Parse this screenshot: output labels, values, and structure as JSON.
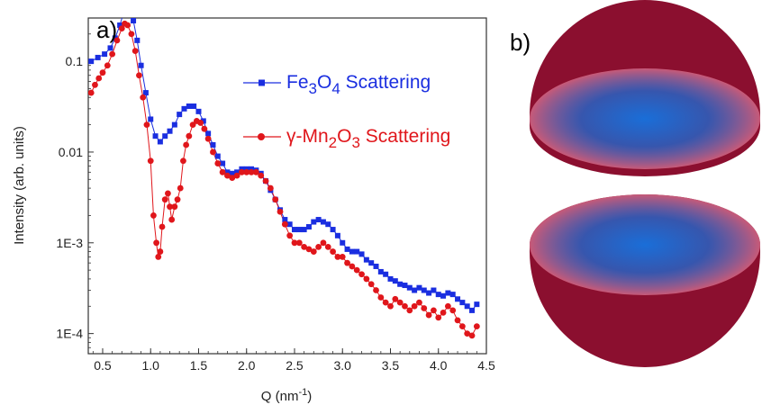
{
  "panel_labels": {
    "a": "a)",
    "b": "b)"
  },
  "chart_data": {
    "type": "scatter",
    "xlabel": "Q (nm",
    "xlabel_exp": "-1",
    "xlabel_close": ")",
    "ylabel": "Intensity (arb. units)",
    "xlim": [
      0.35,
      4.5
    ],
    "ylim": [
      6e-05,
      0.3
    ],
    "yscale": "log",
    "grid": false,
    "legend_position": "top-right",
    "x_ticks": [
      {
        "value": 0.5,
        "label": "0.5"
      },
      {
        "value": 1.0,
        "label": "1.0"
      },
      {
        "value": 1.5,
        "label": "1.5"
      },
      {
        "value": 2.0,
        "label": "2.0"
      },
      {
        "value": 2.5,
        "label": "2.5"
      },
      {
        "value": 3.0,
        "label": "3.0"
      },
      {
        "value": 3.5,
        "label": "3.5"
      },
      {
        "value": 4.0,
        "label": "4.0"
      },
      {
        "value": 4.5,
        "label": "4.5"
      }
    ],
    "y_ticks": [
      {
        "value": 0.1,
        "label": "0.1"
      },
      {
        "value": 0.01,
        "label": "0.01"
      },
      {
        "value": 0.001,
        "label": "1E-3"
      },
      {
        "value": 0.0001,
        "label": "1E-4"
      }
    ],
    "series": [
      {
        "name_parts": [
          {
            "t": "Fe",
            "sub": false
          },
          {
            "t": "3",
            "sub": true
          },
          {
            "t": "O",
            "sub": false
          },
          {
            "t": "4",
            "sub": true
          },
          {
            "t": " Scattering",
            "sub": false
          }
        ],
        "color": "#1a2ee0",
        "marker": "square",
        "x": [
          0.38,
          0.45,
          0.52,
          0.58,
          0.63,
          0.68,
          0.72,
          0.75,
          0.78,
          0.82,
          0.86,
          0.9,
          0.95,
          1.0,
          1.05,
          1.1,
          1.15,
          1.2,
          1.25,
          1.3,
          1.35,
          1.4,
          1.45,
          1.5,
          1.55,
          1.6,
          1.65,
          1.7,
          1.75,
          1.8,
          1.85,
          1.9,
          1.95,
          2.0,
          2.05,
          2.1,
          2.15,
          2.2,
          2.25,
          2.3,
          2.35,
          2.4,
          2.45,
          2.5,
          2.55,
          2.6,
          2.65,
          2.7,
          2.75,
          2.8,
          2.85,
          2.9,
          2.95,
          3.0,
          3.05,
          3.1,
          3.15,
          3.2,
          3.25,
          3.3,
          3.35,
          3.4,
          3.45,
          3.5,
          3.55,
          3.6,
          3.65,
          3.7,
          3.75,
          3.8,
          3.85,
          3.9,
          3.95,
          4.0,
          4.05,
          4.1,
          4.15,
          4.2,
          4.25,
          4.3,
          4.35,
          4.4
        ],
        "y": [
          0.1,
          0.11,
          0.12,
          0.14,
          0.18,
          0.25,
          0.35,
          0.38,
          0.36,
          0.28,
          0.17,
          0.09,
          0.045,
          0.023,
          0.015,
          0.013,
          0.015,
          0.017,
          0.02,
          0.026,
          0.03,
          0.032,
          0.032,
          0.028,
          0.022,
          0.016,
          0.012,
          0.009,
          0.0075,
          0.006,
          0.0058,
          0.006,
          0.0065,
          0.0065,
          0.0065,
          0.0063,
          0.0058,
          0.0048,
          0.0038,
          0.003,
          0.0023,
          0.0018,
          0.0016,
          0.0014,
          0.0014,
          0.0014,
          0.0015,
          0.0017,
          0.0018,
          0.0017,
          0.0016,
          0.0014,
          0.0012,
          0.001,
          0.00085,
          0.0008,
          0.0008,
          0.00075,
          0.00065,
          0.0006,
          0.00055,
          0.00048,
          0.00045,
          0.0004,
          0.00038,
          0.00035,
          0.00034,
          0.00032,
          0.0003,
          0.00032,
          0.0003,
          0.00028,
          0.0003,
          0.00027,
          0.00026,
          0.00028,
          0.00027,
          0.00024,
          0.00022,
          0.0002,
          0.00018,
          0.00021
        ]
      },
      {
        "name_parts": [
          {
            "t": "γ-Mn",
            "sub": false
          },
          {
            "t": "2",
            "sub": true
          },
          {
            "t": "O",
            "sub": false
          },
          {
            "t": "3",
            "sub": true
          },
          {
            "t": " Scattering",
            "sub": false
          }
        ],
        "color": "#e0161b",
        "marker": "circle",
        "x": [
          0.38,
          0.42,
          0.46,
          0.5,
          0.55,
          0.6,
          0.65,
          0.7,
          0.73,
          0.76,
          0.8,
          0.84,
          0.88,
          0.92,
          0.96,
          1.0,
          1.03,
          1.06,
          1.08,
          1.1,
          1.12,
          1.15,
          1.18,
          1.2,
          1.22,
          1.25,
          1.28,
          1.31,
          1.34,
          1.37,
          1.4,
          1.44,
          1.48,
          1.52,
          1.56,
          1.6,
          1.65,
          1.7,
          1.75,
          1.8,
          1.85,
          1.9,
          1.95,
          2.0,
          2.05,
          2.1,
          2.15,
          2.2,
          2.25,
          2.3,
          2.35,
          2.4,
          2.45,
          2.5,
          2.55,
          2.6,
          2.65,
          2.7,
          2.75,
          2.8,
          2.85,
          2.9,
          2.95,
          3.0,
          3.05,
          3.1,
          3.15,
          3.2,
          3.25,
          3.3,
          3.35,
          3.4,
          3.45,
          3.5,
          3.55,
          3.6,
          3.65,
          3.7,
          3.75,
          3.8,
          3.85,
          3.9,
          3.95,
          4.0,
          4.05,
          4.1,
          4.15,
          4.2,
          4.25,
          4.3,
          4.35,
          4.4
        ],
        "y": [
          0.045,
          0.055,
          0.065,
          0.075,
          0.09,
          0.12,
          0.17,
          0.23,
          0.26,
          0.25,
          0.2,
          0.13,
          0.07,
          0.04,
          0.02,
          0.008,
          0.002,
          0.001,
          0.0007,
          0.0008,
          0.0015,
          0.003,
          0.0035,
          0.0025,
          0.0018,
          0.0025,
          0.003,
          0.004,
          0.008,
          0.012,
          0.015,
          0.02,
          0.022,
          0.021,
          0.018,
          0.014,
          0.01,
          0.0075,
          0.006,
          0.0055,
          0.0052,
          0.0055,
          0.006,
          0.006,
          0.006,
          0.006,
          0.0055,
          0.0048,
          0.004,
          0.003,
          0.0022,
          0.0016,
          0.0012,
          0.001,
          0.001,
          0.0009,
          0.00085,
          0.0008,
          0.0009,
          0.001,
          0.0009,
          0.0008,
          0.0007,
          0.0007,
          0.0006,
          0.00055,
          0.0005,
          0.00045,
          0.0004,
          0.00035,
          0.0003,
          0.00025,
          0.00022,
          0.0002,
          0.00024,
          0.00022,
          0.0002,
          0.00018,
          0.0002,
          0.00022,
          0.00019,
          0.00016,
          0.00018,
          0.00015,
          0.00017,
          0.0002,
          0.00018,
          0.00014,
          0.00012,
          0.0001,
          9.5e-05,
          0.00012
        ]
      }
    ]
  },
  "spheres": {
    "shell_color": "#8b0f2f",
    "rim_color": "#c85a78",
    "core_color": "#1a6ed8"
  }
}
